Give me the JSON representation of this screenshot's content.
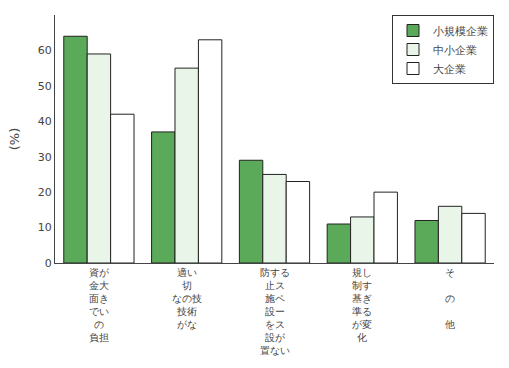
{
  "chart_data": {
    "type": "bar",
    "categories": [
      "資が\n金大\n面き\nでい\nの\n負担",
      "適い\n切\nなの技\n技術\nがな",
      "防する\n止ス\n施ペ\n設ー\nをス\n設が\n置ない",
      "規し\n制す\n基ぎ\n準る\nが変\n化",
      "そ\n\nの\n\n他"
    ],
    "series": [
      {
        "name": "小規模企業",
        "color": "#5aaa5a",
        "values": [
          64,
          37,
          29,
          11,
          12
        ]
      },
      {
        "name": "中小企業",
        "color": "#e8f5e8",
        "values": [
          59,
          55,
          25,
          13,
          16
        ]
      },
      {
        "name": "大企業",
        "color": "#ffffff",
        "values": [
          42,
          63,
          23,
          20,
          14
        ]
      }
    ],
    "ylabel": "(%)",
    "ylim": [
      0,
      70
    ],
    "yticks": [
      0,
      10,
      20,
      30,
      40,
      50,
      60
    ],
    "grid": false,
    "legend": "upper right"
  }
}
